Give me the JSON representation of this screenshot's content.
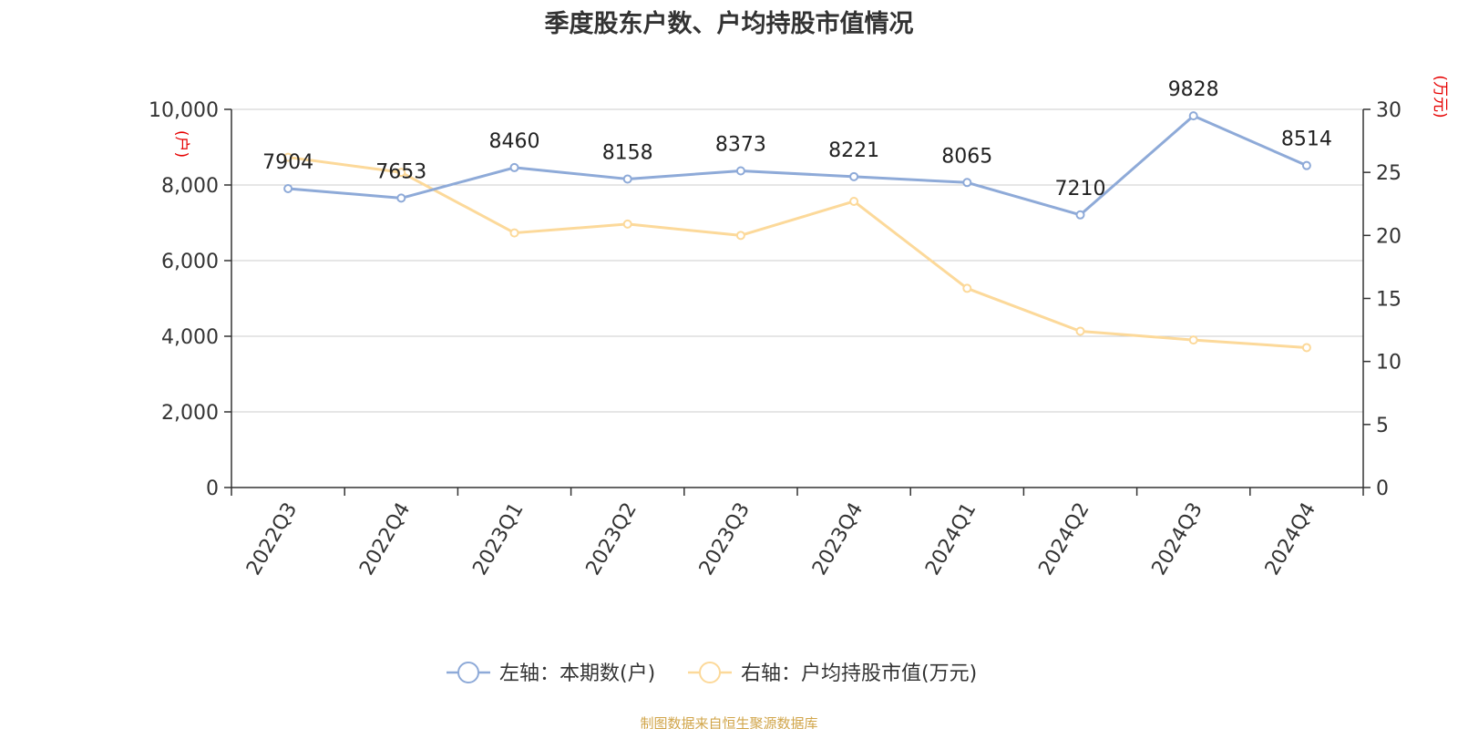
{
  "chart_data": {
    "type": "line",
    "title": "季度股东户数、户均持股市值情况",
    "categories": [
      "2022Q3",
      "2022Q4",
      "2023Q1",
      "2023Q2",
      "2023Q3",
      "2023Q4",
      "2024Q1",
      "2024Q2",
      "2024Q3",
      "2024Q4"
    ],
    "series": [
      {
        "name": "左轴：本期数(户)",
        "axis": "left",
        "color": "#8eaad8",
        "values": [
          7904,
          7653,
          8460,
          8158,
          8373,
          8221,
          8065,
          7210,
          9828,
          8514
        ],
        "data_labels": [
          "7904",
          "7653",
          "8460",
          "8158",
          "8373",
          "8221",
          "8065",
          "7210",
          "9828",
          "8514"
        ]
      },
      {
        "name": "右轴：户均持股市值(万元)",
        "axis": "right",
        "color": "#fcd99a",
        "values": [
          26.2,
          25.0,
          20.2,
          20.9,
          20.0,
          22.7,
          15.8,
          12.4,
          11.7,
          11.1
        ]
      }
    ],
    "left_axis": {
      "unit": "(户)",
      "ylim": [
        0,
        10000
      ],
      "ticks": [
        0,
        2000,
        4000,
        6000,
        8000,
        10000
      ],
      "tick_labels": [
        "0",
        "2,000",
        "4,000",
        "6,000",
        "8,000",
        "10,000"
      ]
    },
    "right_axis": {
      "unit": "(万元)",
      "ylim": [
        0,
        30
      ],
      "ticks": [
        0,
        5,
        10,
        15,
        20,
        25,
        30
      ],
      "tick_labels": [
        "0",
        "5",
        "10",
        "15",
        "20",
        "25",
        "30"
      ]
    },
    "grid": true,
    "legend_position": "bottom-center",
    "colors": {
      "grid": "#cccccc",
      "axis": "#333333",
      "unit_label": "#e60000",
      "text": "#333333",
      "source": "#d1a54a"
    }
  },
  "source_note": "制图数据来自恒生聚源数据库"
}
